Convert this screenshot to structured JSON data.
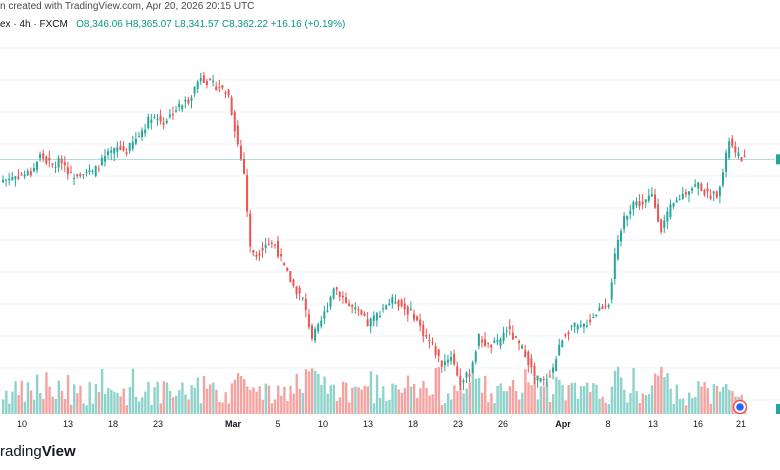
{
  "header": {
    "created_line": "n created with TradingView.com, Apr 20, 2026 20:15 UTC",
    "symbol": "ex · 4h · FXCM",
    "open": "O8,346.06",
    "high": "H8,365.07",
    "low": "L8,341.57",
    "close": "C8,362.22",
    "change": "+16.16 (+0.19%)"
  },
  "brand": {
    "prefix": "rading",
    "suffix": "View"
  },
  "colors": {
    "up": "#26a69a",
    "down": "#ef5350",
    "vol_up": "#8ed3cb",
    "vol_down": "#f5a3a1",
    "last_price_line": "#26a69a"
  },
  "chart_data": {
    "type": "candlestick",
    "timeframe": "4h",
    "price_ylim": [
      7300,
      8900
    ],
    "volume_ylim": [
      0,
      1
    ],
    "last_close": 8362.22,
    "x_ticks": [
      "10",
      "13",
      "18",
      "23",
      "Mar",
      "5",
      "10",
      "13",
      "18",
      "23",
      "26",
      "Apr",
      "8",
      "13",
      "16",
      "21"
    ],
    "x_tick_bold": [
      "Mar",
      "Apr"
    ],
    "anchor_path": [
      [
        0,
        8270
      ],
      [
        5,
        8290
      ],
      [
        9,
        8300
      ],
      [
        12,
        8380
      ],
      [
        16,
        8330
      ],
      [
        19,
        8360
      ],
      [
        22,
        8290
      ],
      [
        26,
        8310
      ],
      [
        29,
        8300
      ],
      [
        33,
        8370
      ],
      [
        37,
        8410
      ],
      [
        40,
        8400
      ],
      [
        44,
        8470
      ],
      [
        48,
        8560
      ],
      [
        52,
        8530
      ],
      [
        56,
        8590
      ],
      [
        60,
        8630
      ],
      [
        64,
        8740
      ],
      [
        67,
        8700
      ],
      [
        70,
        8690
      ],
      [
        73,
        8650
      ],
      [
        76,
        8430
      ],
      [
        78,
        8300
      ],
      [
        80,
        7960
      ],
      [
        82,
        7930
      ],
      [
        85,
        7985
      ],
      [
        88,
        7980
      ],
      [
        91,
        7870
      ],
      [
        94,
        7790
      ],
      [
        97,
        7730
      ],
      [
        100,
        7560
      ],
      [
        102,
        7600
      ],
      [
        105,
        7700
      ],
      [
        107,
        7790
      ],
      [
        109,
        7760
      ],
      [
        112,
        7700
      ],
      [
        115,
        7670
      ],
      [
        118,
        7620
      ],
      [
        121,
        7660
      ],
      [
        124,
        7710
      ],
      [
        127,
        7730
      ],
      [
        130,
        7690
      ],
      [
        133,
        7660
      ],
      [
        136,
        7580
      ],
      [
        139,
        7520
      ],
      [
        142,
        7440
      ],
      [
        145,
        7480
      ],
      [
        148,
        7350
      ],
      [
        151,
        7400
      ],
      [
        154,
        7560
      ],
      [
        157,
        7520
      ],
      [
        160,
        7530
      ],
      [
        163,
        7600
      ],
      [
        166,
        7540
      ],
      [
        169,
        7490
      ],
      [
        172,
        7380
      ],
      [
        175,
        7360
      ],
      [
        178,
        7420
      ],
      [
        181,
        7560
      ],
      [
        184,
        7610
      ],
      [
        187,
        7600
      ],
      [
        190,
        7640
      ],
      [
        193,
        7690
      ],
      [
        196,
        7720
      ],
      [
        198,
        7920
      ],
      [
        201,
        8100
      ],
      [
        204,
        8170
      ],
      [
        207,
        8160
      ],
      [
        210,
        8200
      ],
      [
        213,
        8050
      ],
      [
        216,
        8140
      ],
      [
        219,
        8190
      ],
      [
        222,
        8230
      ],
      [
        225,
        8250
      ],
      [
        228,
        8200
      ],
      [
        231,
        8210
      ],
      [
        233,
        8300
      ],
      [
        235,
        8450
      ],
      [
        237,
        8380
      ],
      [
        240,
        8362
      ]
    ]
  }
}
